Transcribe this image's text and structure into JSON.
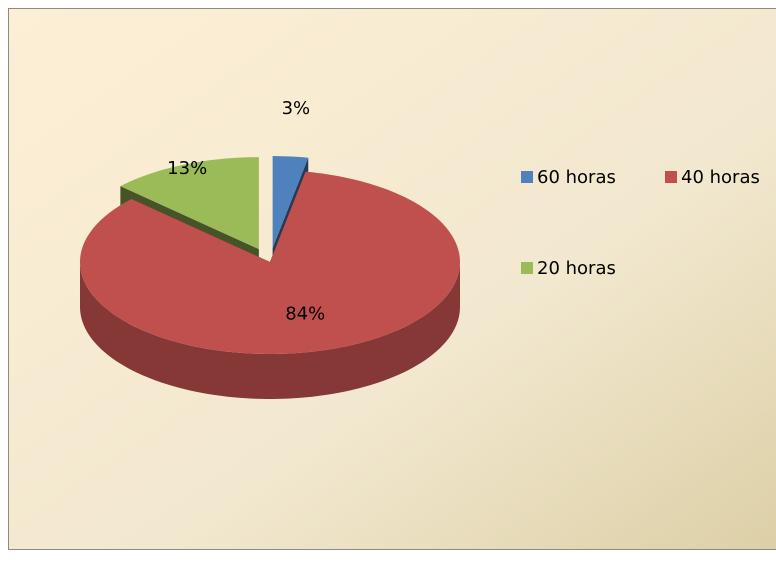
{
  "chart_data": {
    "type": "pie",
    "categories": [
      "60 horas",
      "40 horas",
      "20 horas"
    ],
    "values": [
      3,
      84,
      13
    ],
    "value_labels": [
      "3%",
      "84%",
      "13%"
    ],
    "colors": [
      "#4f81bd",
      "#c0504d",
      "#9bbb59"
    ],
    "legend": "right"
  }
}
